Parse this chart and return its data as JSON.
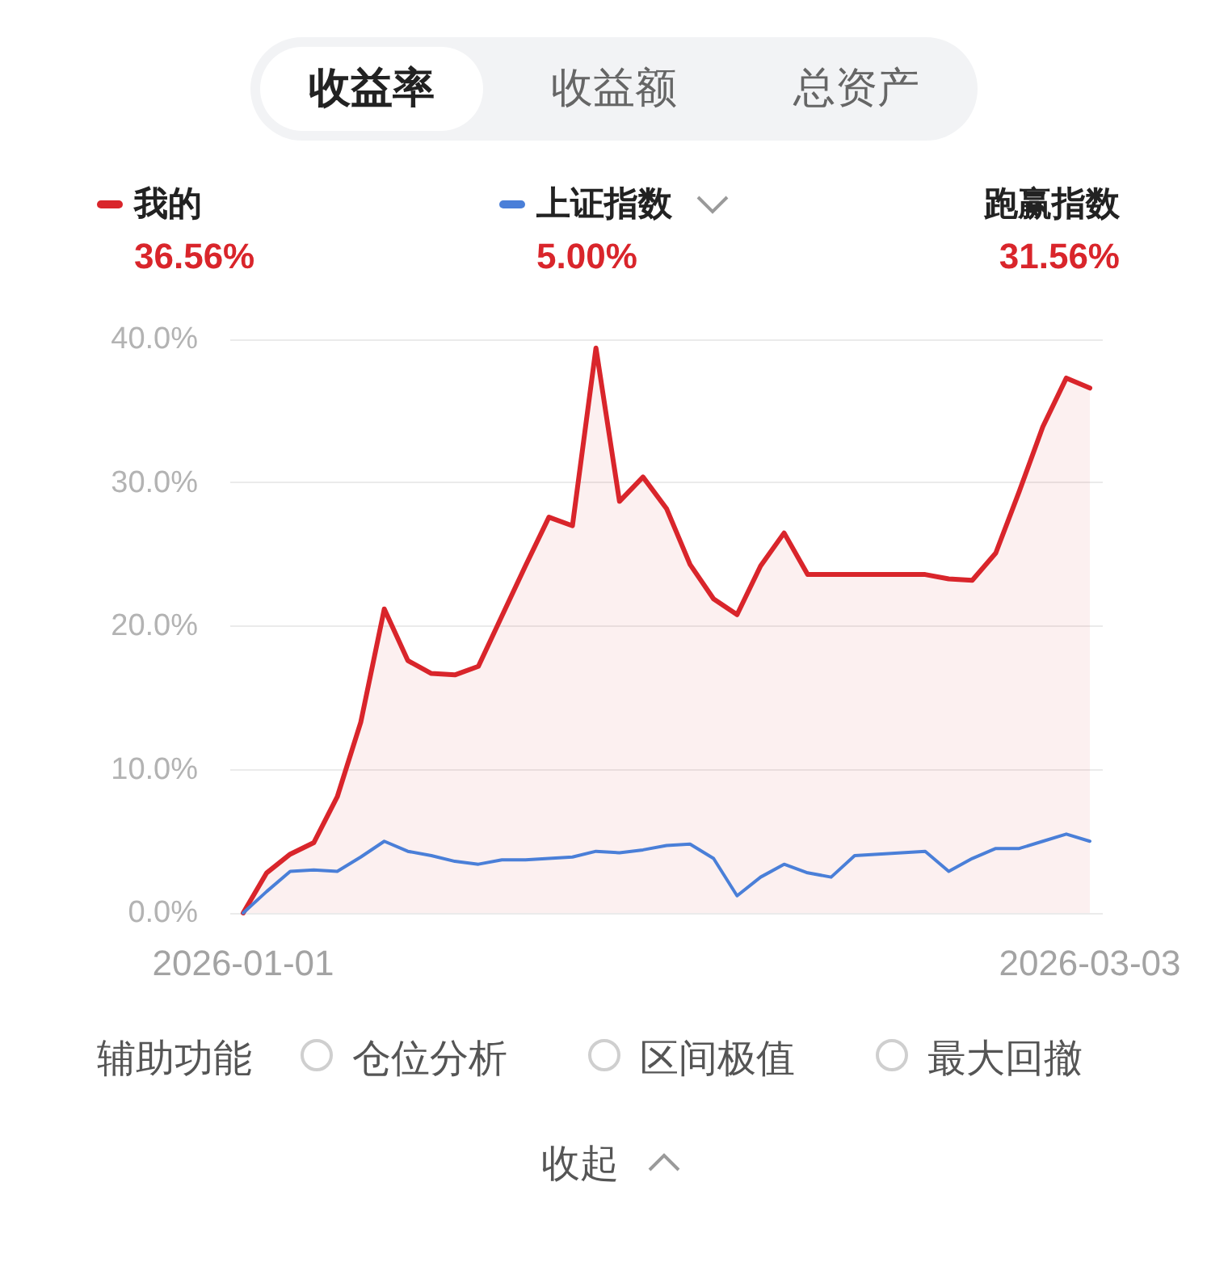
{
  "chart_data": {
    "type": "line",
    "categories": [
      "2026-01-01",
      null,
      null,
      null,
      null,
      null,
      null,
      null,
      null,
      null,
      null,
      null,
      null,
      null,
      null,
      null,
      null,
      null,
      null,
      null,
      null,
      null,
      null,
      null,
      null,
      null,
      null,
      null,
      null,
      null,
      null,
      null,
      null,
      null,
      null,
      null,
      "2026-03-03"
    ],
    "series": [
      {
        "name": "我的",
        "type": "area",
        "color": "#d9252b",
        "values": [
          0,
          2.8,
          4.1,
          4.9,
          8.1,
          13.3,
          21.2,
          17.6,
          16.7,
          16.6,
          17.2,
          20.7,
          24.2,
          27.6,
          27.0,
          39.4,
          28.7,
          30.4,
          28.2,
          24.3,
          21.9,
          20.8,
          24.2,
          26.5,
          23.6,
          23.6,
          23.6,
          23.6,
          23.6,
          23.6,
          23.3,
          23.2,
          25.1,
          29.4,
          33.9,
          37.3,
          36.6
        ]
      },
      {
        "name": "上证指数",
        "color": "#4a7fd8",
        "values": [
          0,
          1.5,
          2.9,
          3.0,
          2.9,
          3.9,
          5.0,
          4.3,
          4.0,
          3.6,
          3.4,
          3.7,
          3.7,
          3.8,
          3.9,
          4.3,
          4.2,
          4.4,
          4.7,
          4.8,
          3.8,
          1.2,
          2.5,
          3.4,
          2.8,
          2.5,
          4.0,
          4.1,
          4.2,
          4.3,
          2.9,
          3.8,
          4.5,
          4.5,
          5.0,
          5.5,
          5.0
        ]
      }
    ],
    "ylim": [
      0,
      40
    ],
    "yticks": [
      {
        "value": 0,
        "label": "0.0%"
      },
      {
        "value": 10,
        "label": "10.0%"
      },
      {
        "value": 20,
        "label": "20.0%"
      },
      {
        "value": 30,
        "label": "30.0%"
      },
      {
        "value": 40,
        "label": "40.0%"
      }
    ],
    "grid": "y",
    "legend": "top",
    "annotations": [
      "收益率",
      "收益额",
      "总资产",
      "36.56%",
      "5.00%",
      "跑赢指数",
      "31.56%",
      "辅助功能",
      "仓位分析",
      "区间极值",
      "最大回撤",
      "收起"
    ]
  }
}
